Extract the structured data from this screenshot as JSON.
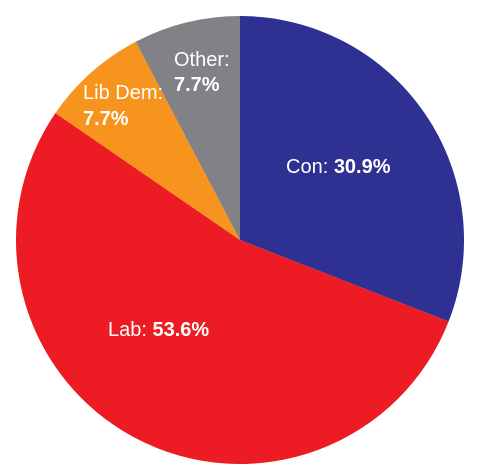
{
  "chart_data": {
    "type": "pie",
    "title": "",
    "slices": [
      {
        "name": "Con",
        "label": "Con:",
        "value": 30.9,
        "value_text": "30.9%",
        "color": "#2e3192"
      },
      {
        "name": "Lab",
        "label": "Lab:",
        "value": 53.6,
        "value_text": "53.6%",
        "color": "#ed1c24"
      },
      {
        "name": "Lib Dem",
        "label": "Lib Dem:",
        "value": 7.7,
        "value_text": "7.7%",
        "color": "#f7941d"
      },
      {
        "name": "Other",
        "label": "Other:",
        "value": 7.7,
        "value_text": "7.7%",
        "color": "#808285"
      }
    ],
    "start_angle_deg": 0,
    "direction": "clockwise",
    "legend": "none",
    "labels_inside_slices": true
  }
}
